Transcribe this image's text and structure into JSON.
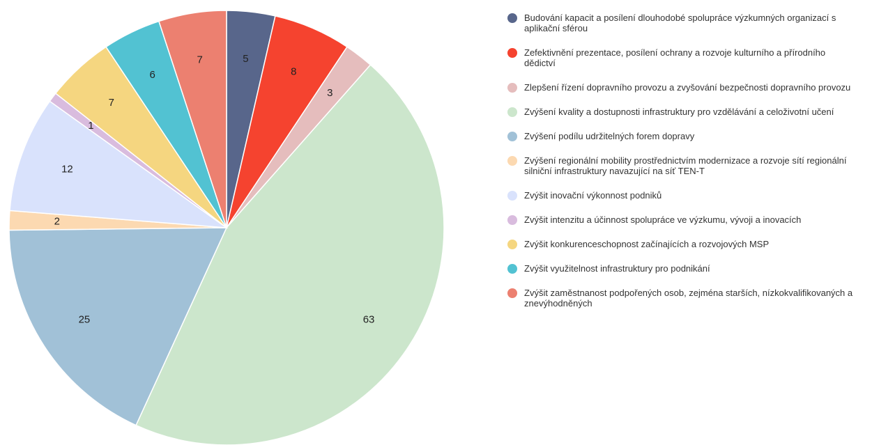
{
  "chart_data": {
    "type": "pie",
    "categories": [
      "Budování kapacit a posílení dlouhodobé spolupráce výzkumných organizací s aplikační sférou",
      "Zefektivnění prezentace, posílení ochrany a rozvoje kulturního a přírodního dědictví",
      "Zlepšení řízení dopravního provozu a zvyšování bezpečnosti dopravního provozu",
      "Zvýšení kvality a dostupnosti infrastruktury pro vzdělávání a celoživotní učení",
      "Zvýšení podílu udržitelných forem dopravy",
      "Zvýšení regionální mobility prostřednictvím modernizace a rozvoje sítí regionální silniční infrastruktury navazující na síť TEN-T",
      "Zvýšit inovační výkonnost podniků",
      "Zvýšit intenzitu a účinnost spolupráce ve výzkumu, vývoji a inovacích",
      "Zvýšit konkurenceschopnost začínajících a rozvojových MSP",
      "Zvýšit využitelnost infrastruktury pro podnikání",
      "Zvýšit zaměstnanost podpořených osob, zejména starších, nízkokvalifikovaných a znevýhodněných"
    ],
    "values": [
      5,
      8,
      3,
      63,
      25,
      2,
      12,
      1,
      7,
      6,
      7
    ],
    "colors": [
      "#58668b",
      "#f5432f",
      "#e5bdbd",
      "#cce6cc",
      "#a1c1d7",
      "#fcd9b1",
      "#d9e2fc",
      "#d9bcde",
      "#f5d680",
      "#52c2d2",
      "#ec8070"
    ]
  }
}
